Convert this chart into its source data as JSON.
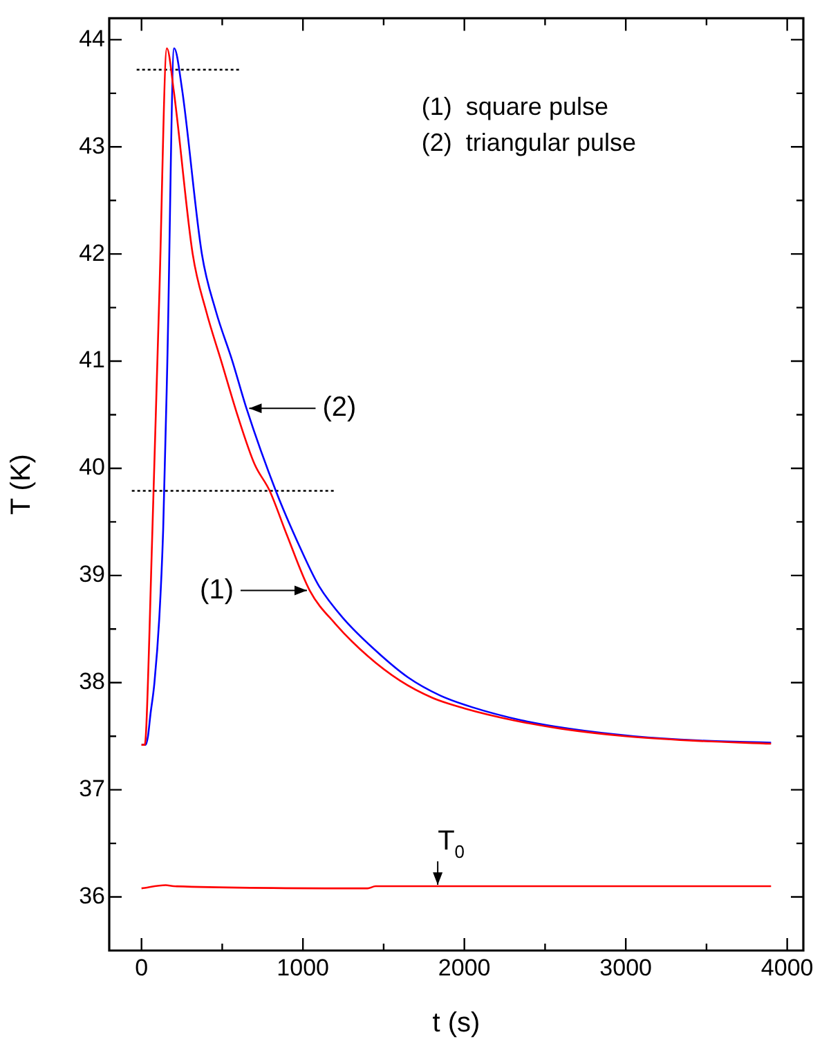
{
  "chart_data": {
    "type": "line",
    "xlabel": "t (s)",
    "ylabel": "T (K)",
    "xlim": [
      -200,
      4100
    ],
    "ylim": [
      35.5,
      44.2
    ],
    "xticks": [
      0,
      {
        "value": 500,
        "label": null
      },
      1000,
      {
        "value": 1500,
        "label": null
      },
      2000,
      {
        "value": 2500,
        "label": null
      },
      3000,
      {
        "value": 3500,
        "label": null
      },
      4000
    ],
    "yticks": [
      {
        "value": 36.5,
        "label": null
      },
      36,
      37,
      {
        "value": 37.5,
        "label": null
      },
      38,
      {
        "value": 38.5,
        "label": null
      },
      39,
      {
        "value": 39.5,
        "label": null
      },
      40,
      {
        "value": 40.5,
        "label": null
      },
      41,
      {
        "value": 41.5,
        "label": null
      },
      42,
      {
        "value": 42.5,
        "label": null
      },
      43,
      {
        "value": 43.5,
        "label": null
      },
      44
    ],
    "grid": false,
    "legend": false,
    "marker": "none",
    "line_style": "solid",
    "series": [
      {
        "color": "#ff0000",
        "x": [
          0,
          20,
          30,
          65,
          110,
          157,
          200,
          317,
          400,
          494,
          600,
          700,
          794,
          900,
          1042,
          1200,
          1400,
          1600,
          1800,
          2000,
          2300,
          2600,
          3000,
          3400,
          3900
        ],
        "values": [
          37.42,
          37.42,
          37.6,
          39.3,
          41.6,
          43.92,
          43.52,
          42.0,
          41.47,
          41.0,
          40.47,
          40.04,
          39.79,
          39.38,
          38.86,
          38.55,
          38.25,
          38.02,
          37.86,
          37.76,
          37.65,
          37.57,
          37.5,
          37.46,
          37.43
        ]
      },
      {
        "color": "#0000ff",
        "x": [
          0,
          25,
          40,
          55,
          80,
          110,
          134,
          160,
          202,
          250,
          374,
          460,
          563,
          650,
          832,
          1010,
          1100,
          1250,
          1450,
          1650,
          1850,
          2050,
          2350,
          2650,
          3050,
          3450,
          3900
        ],
        "values": [
          37.42,
          37.42,
          37.5,
          37.7,
          38.0,
          38.6,
          39.42,
          41.0,
          43.92,
          43.55,
          42.0,
          41.47,
          41.0,
          40.56,
          39.79,
          39.17,
          38.9,
          38.6,
          38.3,
          38.05,
          37.88,
          37.77,
          37.65,
          37.57,
          37.5,
          37.46,
          37.44
        ]
      },
      {
        "color": "#ff0000",
        "x": [
          0,
          150,
          200,
          1400,
          1450,
          3900
        ],
        "values": [
          36.08,
          36.11,
          36.1,
          36.08,
          36.1,
          36.1
        ]
      },
      {
        "color": "#000000",
        "line_style": "dotted",
        "x": [
          -30,
          610
        ],
        "values": [
          43.72,
          43.72
        ]
      },
      {
        "color": "#000000",
        "line_style": "dotted",
        "x": [
          -60,
          1200
        ],
        "values": [
          39.79,
          39.79
        ]
      }
    ],
    "annotations": [
      "(1)  square pulse",
      "(2)  triangular pulse",
      {
        "text": "(2)",
        "x": 650,
        "y": 40.56
      },
      {
        "text": "(1)",
        "x": 1042,
        "y": 38.86
      },
      {
        "text": "T$_{0}$",
        "x": 1835,
        "y": 36.1
      }
    ]
  }
}
